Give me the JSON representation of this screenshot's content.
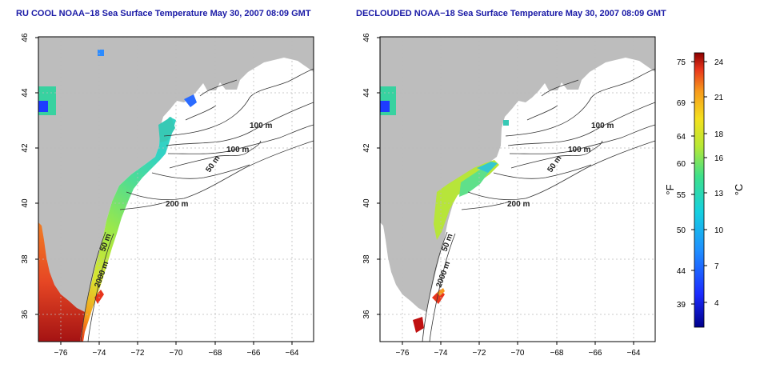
{
  "left_panel": {
    "title": "RU COOL NOAA−18 Sea Surface Temperature May 30, 2007 08:09 GMT",
    "contour_labels": [
      "100 m",
      "100 m",
      "50 m",
      "200 m",
      "50 m",
      "2000 m"
    ]
  },
  "right_panel": {
    "title": "DECLOUDED NOAA−18 Sea Surface Temperature May 30, 2007 08:09 GMT",
    "contour_labels": [
      "100 m",
      "100 m",
      "50 m",
      "200 m",
      "50 m",
      "2000 m"
    ]
  },
  "axes": {
    "x_ticks": [
      "−76",
      "−74",
      "−72",
      "−70",
      "−68",
      "−66",
      "−64"
    ],
    "y_ticks": [
      "46",
      "44",
      "42",
      "40",
      "38",
      "36"
    ]
  },
  "colorbar": {
    "fahrenheit_label": "°F",
    "celsius_label": "°C",
    "fahrenheit_ticks": [
      "75",
      "69",
      "64",
      "60",
      "55",
      "50",
      "44",
      "39"
    ],
    "celsius_ticks": [
      "24",
      "21",
      "18",
      "16",
      "13",
      "10",
      "7",
      "4"
    ]
  },
  "colors": {
    "title": "#1a1aa6",
    "land": "#bdbdbd",
    "ocean": "#ffffff",
    "grid": "#bbbbbb"
  }
}
